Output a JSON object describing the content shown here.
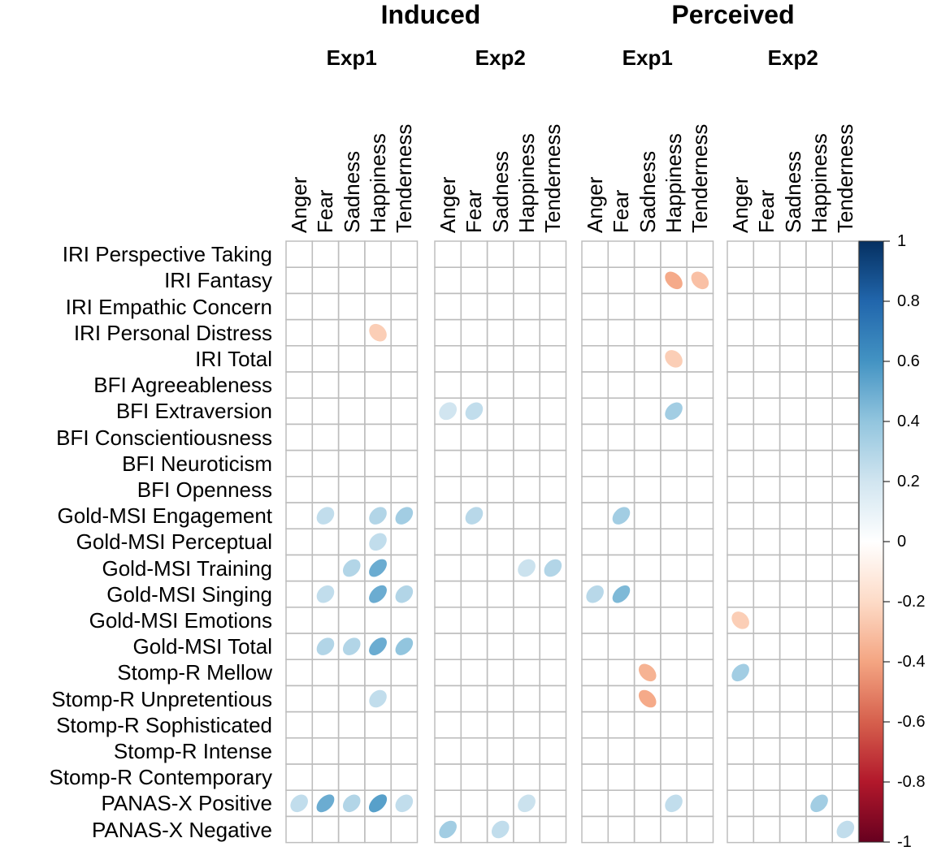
{
  "chart_data": {
    "type": "heatmap",
    "title": "",
    "groups": [
      {
        "name": "Induced",
        "experiments": [
          "Exp1",
          "Exp2"
        ]
      },
      {
        "name": "Perceived",
        "experiments": [
          "Exp1",
          "Exp2"
        ]
      }
    ],
    "columns": [
      "Anger",
      "Fear",
      "Sadness",
      "Happiness",
      "Tenderness"
    ],
    "rows": [
      "IRI Perspective Taking",
      "IRI Fantasy",
      "IRI Empathic Concern",
      "IRI Personal Distress",
      "IRI Total",
      "BFI Agreeableness",
      "BFI Extraversion",
      "BFI Conscientiousness",
      "BFI Neuroticism",
      "BFI Openness",
      "Gold-MSI Engagement",
      "Gold-MSI Perceptual",
      "Gold-MSI Training",
      "Gold-MSI Singing",
      "Gold-MSI Emotions",
      "Gold-MSI Total",
      "Stomp-R Mellow",
      "Stomp-R Unpretentious",
      "Stomp-R Sophisticated",
      "Stomp-R Intense",
      "Stomp-R Contemporary",
      "PANAS-X Positive",
      "PANAS-X Negative"
    ],
    "panels": [
      {
        "name": "Induced Exp1",
        "cells": [
          {
            "row": 3,
            "col": 3,
            "value": -0.25
          },
          {
            "row": 10,
            "col": 1,
            "value": 0.25
          },
          {
            "row": 10,
            "col": 3,
            "value": 0.3
          },
          {
            "row": 10,
            "col": 4,
            "value": 0.35
          },
          {
            "row": 11,
            "col": 3,
            "value": 0.25
          },
          {
            "row": 12,
            "col": 2,
            "value": 0.3
          },
          {
            "row": 12,
            "col": 3,
            "value": 0.5
          },
          {
            "row": 13,
            "col": 1,
            "value": 0.25
          },
          {
            "row": 13,
            "col": 3,
            "value": 0.5
          },
          {
            "row": 13,
            "col": 4,
            "value": 0.3
          },
          {
            "row": 15,
            "col": 1,
            "value": 0.3
          },
          {
            "row": 15,
            "col": 2,
            "value": 0.3
          },
          {
            "row": 15,
            "col": 3,
            "value": 0.5
          },
          {
            "row": 15,
            "col": 4,
            "value": 0.4
          },
          {
            "row": 17,
            "col": 3,
            "value": 0.25
          },
          {
            "row": 21,
            "col": 0,
            "value": 0.25
          },
          {
            "row": 21,
            "col": 1,
            "value": 0.5
          },
          {
            "row": 21,
            "col": 2,
            "value": 0.3
          },
          {
            "row": 21,
            "col": 3,
            "value": 0.55
          },
          {
            "row": 21,
            "col": 4,
            "value": 0.25
          }
        ]
      },
      {
        "name": "Induced Exp2",
        "cells": [
          {
            "row": 6,
            "col": 0,
            "value": 0.2
          },
          {
            "row": 6,
            "col": 1,
            "value": 0.25
          },
          {
            "row": 10,
            "col": 1,
            "value": 0.28
          },
          {
            "row": 12,
            "col": 3,
            "value": 0.22
          },
          {
            "row": 12,
            "col": 4,
            "value": 0.3
          },
          {
            "row": 21,
            "col": 3,
            "value": 0.22
          },
          {
            "row": 22,
            "col": 0,
            "value": 0.35
          },
          {
            "row": 22,
            "col": 2,
            "value": 0.25
          }
        ]
      },
      {
        "name": "Perceived Exp1",
        "cells": [
          {
            "row": 1,
            "col": 3,
            "value": -0.38
          },
          {
            "row": 1,
            "col": 4,
            "value": -0.3
          },
          {
            "row": 4,
            "col": 3,
            "value": -0.25
          },
          {
            "row": 6,
            "col": 3,
            "value": 0.35
          },
          {
            "row": 10,
            "col": 1,
            "value": 0.35
          },
          {
            "row": 13,
            "col": 0,
            "value": 0.28
          },
          {
            "row": 13,
            "col": 1,
            "value": 0.45
          },
          {
            "row": 16,
            "col": 2,
            "value": -0.35
          },
          {
            "row": 17,
            "col": 2,
            "value": -0.38
          },
          {
            "row": 21,
            "col": 3,
            "value": 0.25
          }
        ]
      },
      {
        "name": "Perceived Exp2",
        "cells": [
          {
            "row": 14,
            "col": 0,
            "value": -0.25
          },
          {
            "row": 16,
            "col": 0,
            "value": 0.35
          },
          {
            "row": 21,
            "col": 3,
            "value": 0.35
          },
          {
            "row": 22,
            "col": 4,
            "value": 0.25
          }
        ]
      }
    ],
    "colorbar": {
      "ticks": [
        "1",
        "0.8",
        "0.6",
        "0.4",
        "0.2",
        "0",
        "-0.2",
        "-0.4",
        "-0.6",
        "-0.8",
        "-1"
      ],
      "range": [
        -1,
        1
      ],
      "colors": [
        "#67001f",
        "#b2182b",
        "#d6604d",
        "#f4a582",
        "#fddbc7",
        "#ffffff",
        "#d1e5f0",
        "#92c5de",
        "#4393c3",
        "#2166ac",
        "#053061"
      ]
    }
  }
}
